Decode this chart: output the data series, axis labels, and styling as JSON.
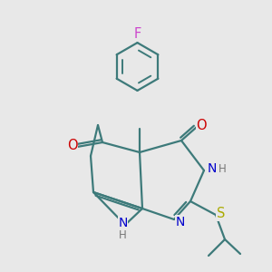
{
  "bg": "#e8e8e8",
  "bc": "#3d7a7a",
  "bw": 1.6,
  "Nc": "#0000cc",
  "Oc": "#cc0000",
  "Fc": "#cc44cc",
  "Sc": "#aaaa00",
  "fs": 9.5
}
